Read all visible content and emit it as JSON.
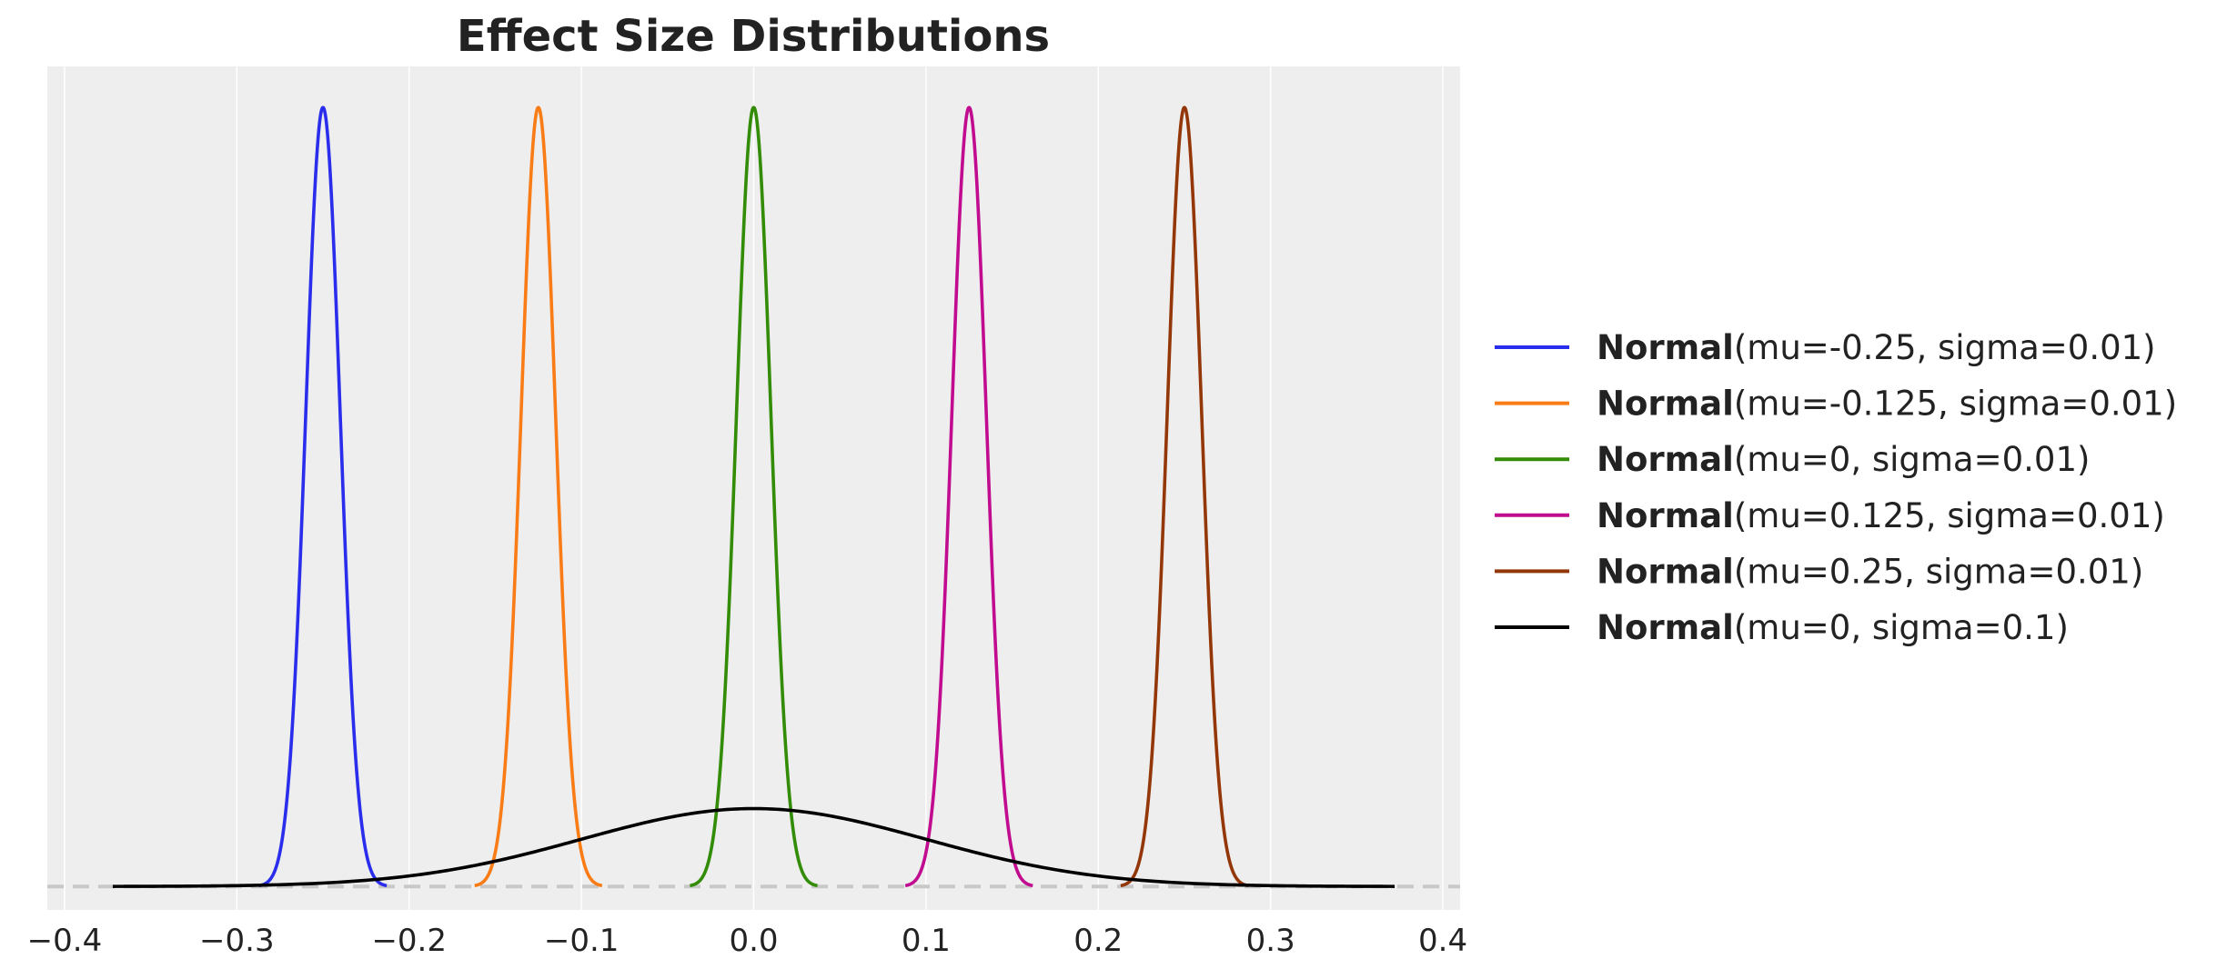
{
  "chart_data": {
    "type": "line",
    "title": "Effect Size Distributions",
    "xlabel": "",
    "ylabel": "",
    "xlim": [
      -0.41,
      0.41
    ],
    "ylim": [
      -1.2,
      42.0
    ],
    "xticks": [
      -0.4,
      -0.3,
      -0.2,
      -0.1,
      0.0,
      0.1,
      0.2,
      0.3,
      0.4
    ],
    "xtick_labels": [
      "−0.4",
      "−0.3",
      "−0.2",
      "−0.1",
      "0.0",
      "0.1",
      "0.2",
      "0.3",
      "0.4"
    ],
    "yticks_shown": false,
    "grid": "vertical",
    "baseline": {
      "y": 0,
      "style": "dashed",
      "color": "#c8c8c8"
    },
    "legend_position": "center-right",
    "series": [
      {
        "name_bold": "Normal",
        "name_rest": "(mu=-0.25, sigma=0.01)",
        "mu": -0.25,
        "sigma": 0.01,
        "x_range": [
          -0.287,
          -0.213
        ],
        "color": "#2a2eec"
      },
      {
        "name_bold": "Normal",
        "name_rest": "(mu=-0.125, sigma=0.01)",
        "mu": -0.125,
        "sigma": 0.01,
        "x_range": [
          -0.162,
          -0.088
        ],
        "color": "#fa7c17"
      },
      {
        "name_bold": "Normal",
        "name_rest": "(mu=0, sigma=0.01)",
        "mu": 0.0,
        "sigma": 0.01,
        "x_range": [
          -0.037,
          0.037
        ],
        "color": "#328c06"
      },
      {
        "name_bold": "Normal",
        "name_rest": "(mu=0.125, sigma=0.01)",
        "mu": 0.125,
        "sigma": 0.01,
        "x_range": [
          0.088,
          0.162
        ],
        "color": "#c10c90"
      },
      {
        "name_bold": "Normal",
        "name_rest": "(mu=0.25, sigma=0.01)",
        "mu": 0.25,
        "sigma": 0.01,
        "x_range": [
          0.213,
          0.287
        ],
        "color": "#933708"
      },
      {
        "name_bold": "Normal",
        "name_rest": "(mu=0, sigma=0.1)",
        "mu": 0.0,
        "sigma": 0.1,
        "x_range": [
          -0.372,
          0.372
        ],
        "color": "#000000"
      }
    ]
  },
  "colors": {
    "plot_background": "#eeeeee",
    "grid": "#ffffff",
    "text": "#222222"
  }
}
